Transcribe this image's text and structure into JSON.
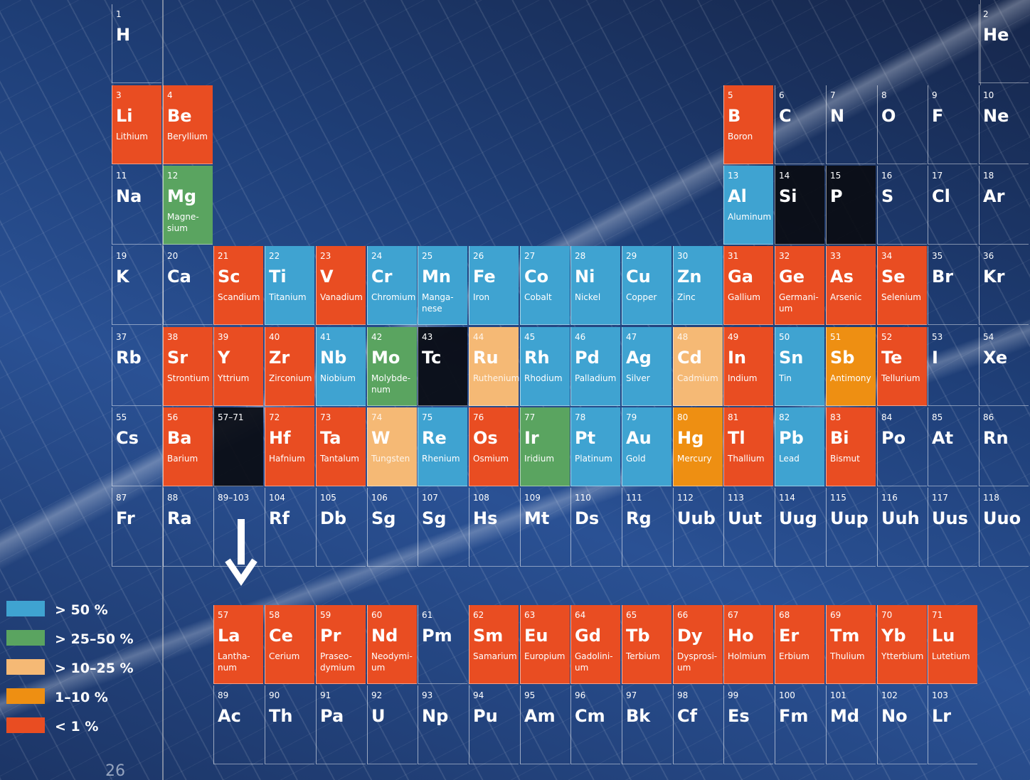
{
  "page_number": "26",
  "colors": {
    "blue": "#3fa3d1",
    "green": "#5aa460",
    "lightorange": "#f5b975",
    "orange": "#ee8f12",
    "red": "#e94d22"
  },
  "legend": [
    {
      "label": "> 50 %",
      "color": "blue"
    },
    {
      "label": "> 25–50 %",
      "color": "green"
    },
    {
      "label": "> 10–25 %",
      "color": "lightorange"
    },
    {
      "label": "1–10 %",
      "color": "orange"
    },
    {
      "label": "< 1 %",
      "color": "red"
    }
  ],
  "elements": [
    {
      "n": "1",
      "s": "H",
      "name": "",
      "c": "",
      "r": 1,
      "col": 1
    },
    {
      "n": "2",
      "s": "He",
      "name": "",
      "c": "",
      "r": 1,
      "col": 18
    },
    {
      "n": "3",
      "s": "Li",
      "name": "Lithium",
      "c": "red",
      "r": 2,
      "col": 1
    },
    {
      "n": "4",
      "s": "Be",
      "name": "Beryllium",
      "c": "red",
      "r": 2,
      "col": 2
    },
    {
      "n": "5",
      "s": "B",
      "name": "Boron",
      "c": "red",
      "r": 2,
      "col": 13
    },
    {
      "n": "6",
      "s": "C",
      "name": "",
      "c": "",
      "r": 2,
      "col": 14
    },
    {
      "n": "7",
      "s": "N",
      "name": "",
      "c": "",
      "r": 2,
      "col": 15
    },
    {
      "n": "8",
      "s": "O",
      "name": "",
      "c": "",
      "r": 2,
      "col": 16
    },
    {
      "n": "9",
      "s": "F",
      "name": "",
      "c": "",
      "r": 2,
      "col": 17
    },
    {
      "n": "10",
      "s": "Ne",
      "name": "",
      "c": "",
      "r": 2,
      "col": 18
    },
    {
      "n": "11",
      "s": "Na",
      "name": "",
      "c": "",
      "r": 3,
      "col": 1
    },
    {
      "n": "12",
      "s": "Mg",
      "name": "Magne-\nsium",
      "c": "green",
      "r": 3,
      "col": 2
    },
    {
      "n": "13",
      "s": "Al",
      "name": "Aluminum",
      "c": "blue",
      "r": 3,
      "col": 13
    },
    {
      "n": "14",
      "s": "Si",
      "name": "",
      "c": "dark",
      "r": 3,
      "col": 14
    },
    {
      "n": "15",
      "s": "P",
      "name": "",
      "c": "dark",
      "r": 3,
      "col": 15
    },
    {
      "n": "16",
      "s": "S",
      "name": "",
      "c": "",
      "r": 3,
      "col": 16
    },
    {
      "n": "17",
      "s": "Cl",
      "name": "",
      "c": "",
      "r": 3,
      "col": 17
    },
    {
      "n": "18",
      "s": "Ar",
      "name": "",
      "c": "",
      "r": 3,
      "col": 18
    },
    {
      "n": "19",
      "s": "K",
      "name": "",
      "c": "",
      "r": 4,
      "col": 1
    },
    {
      "n": "20",
      "s": "Ca",
      "name": "",
      "c": "",
      "r": 4,
      "col": 2
    },
    {
      "n": "21",
      "s": "Sc",
      "name": "Scandium",
      "c": "red",
      "r": 4,
      "col": 3
    },
    {
      "n": "22",
      "s": "Ti",
      "name": "Titanium",
      "c": "blue",
      "r": 4,
      "col": 4
    },
    {
      "n": "23",
      "s": "V",
      "name": "Vanadium",
      "c": "red",
      "r": 4,
      "col": 5
    },
    {
      "n": "24",
      "s": "Cr",
      "name": "Chromium",
      "c": "blue",
      "r": 4,
      "col": 6
    },
    {
      "n": "25",
      "s": "Mn",
      "name": "Manga-\nnese",
      "c": "blue",
      "r": 4,
      "col": 7
    },
    {
      "n": "26",
      "s": "Fe",
      "name": "Iron",
      "c": "blue",
      "r": 4,
      "col": 8
    },
    {
      "n": "27",
      "s": "Co",
      "name": "Cobalt",
      "c": "blue",
      "r": 4,
      "col": 9
    },
    {
      "n": "28",
      "s": "Ni",
      "name": "Nickel",
      "c": "blue",
      "r": 4,
      "col": 10
    },
    {
      "n": "29",
      "s": "Cu",
      "name": "Copper",
      "c": "blue",
      "r": 4,
      "col": 11
    },
    {
      "n": "30",
      "s": "Zn",
      "name": "Zinc",
      "c": "blue",
      "r": 4,
      "col": 12
    },
    {
      "n": "31",
      "s": "Ga",
      "name": "Gallium",
      "c": "red",
      "r": 4,
      "col": 13
    },
    {
      "n": "32",
      "s": "Ge",
      "name": "Germani-\num",
      "c": "red",
      "r": 4,
      "col": 14
    },
    {
      "n": "33",
      "s": "As",
      "name": "Arsenic",
      "c": "red",
      "r": 4,
      "col": 15
    },
    {
      "n": "34",
      "s": "Se",
      "name": "Selenium",
      "c": "red",
      "r": 4,
      "col": 16
    },
    {
      "n": "35",
      "s": "Br",
      "name": "",
      "c": "",
      "r": 4,
      "col": 17
    },
    {
      "n": "36",
      "s": "Kr",
      "name": "",
      "c": "",
      "r": 4,
      "col": 18
    },
    {
      "n": "37",
      "s": "Rb",
      "name": "",
      "c": "",
      "r": 5,
      "col": 1
    },
    {
      "n": "38",
      "s": "Sr",
      "name": "Strontium",
      "c": "red",
      "r": 5,
      "col": 2
    },
    {
      "n": "39",
      "s": "Y",
      "name": "Yttrium",
      "c": "red",
      "r": 5,
      "col": 3
    },
    {
      "n": "40",
      "s": "Zr",
      "name": "Zirconium",
      "c": "red",
      "r": 5,
      "col": 4
    },
    {
      "n": "41",
      "s": "Nb",
      "name": "Niobium",
      "c": "blue",
      "r": 5,
      "col": 5
    },
    {
      "n": "42",
      "s": "Mo",
      "name": "Molybde-\nnum",
      "c": "green",
      "r": 5,
      "col": 6
    },
    {
      "n": "43",
      "s": "Tc",
      "name": "",
      "c": "dark",
      "r": 5,
      "col": 7
    },
    {
      "n": "44",
      "s": "Ru",
      "name": "Ruthenium",
      "c": "lightorange",
      "r": 5,
      "col": 8
    },
    {
      "n": "45",
      "s": "Rh",
      "name": "Rhodium",
      "c": "blue",
      "r": 5,
      "col": 9
    },
    {
      "n": "46",
      "s": "Pd",
      "name": "Palladium",
      "c": "blue",
      "r": 5,
      "col": 10
    },
    {
      "n": "47",
      "s": "Ag",
      "name": "Silver",
      "c": "blue",
      "r": 5,
      "col": 11
    },
    {
      "n": "48",
      "s": "Cd",
      "name": "Cadmium",
      "c": "lightorange",
      "r": 5,
      "col": 12
    },
    {
      "n": "49",
      "s": "In",
      "name": "Indium",
      "c": "red",
      "r": 5,
      "col": 13
    },
    {
      "n": "50",
      "s": "Sn",
      "name": "Tin",
      "c": "blue",
      "r": 5,
      "col": 14
    },
    {
      "n": "51",
      "s": "Sb",
      "name": "Antimony",
      "c": "orange",
      "r": 5,
      "col": 15
    },
    {
      "n": "52",
      "s": "Te",
      "name": "Tellurium",
      "c": "red",
      "r": 5,
      "col": 16
    },
    {
      "n": "53",
      "s": "I",
      "name": "",
      "c": "",
      "r": 5,
      "col": 17
    },
    {
      "n": "54",
      "s": "Xe",
      "name": "",
      "c": "",
      "r": 5,
      "col": 18
    },
    {
      "n": "55",
      "s": "Cs",
      "name": "",
      "c": "",
      "r": 6,
      "col": 1
    },
    {
      "n": "56",
      "s": "Ba",
      "name": "Barium",
      "c": "red",
      "r": 6,
      "col": 2
    },
    {
      "n": "57–71",
      "s": "",
      "name": "",
      "c": "dark",
      "r": 6,
      "col": 3
    },
    {
      "n": "72",
      "s": "Hf",
      "name": "Hafnium",
      "c": "red",
      "r": 6,
      "col": 4
    },
    {
      "n": "73",
      "s": "Ta",
      "name": "Tantalum",
      "c": "red",
      "r": 6,
      "col": 5
    },
    {
      "n": "74",
      "s": "W",
      "name": "Tungsten",
      "c": "lightorange",
      "r": 6,
      "col": 6
    },
    {
      "n": "75",
      "s": "Re",
      "name": "Rhenium",
      "c": "blue",
      "r": 6,
      "col": 7
    },
    {
      "n": "76",
      "s": "Os",
      "name": "Osmium",
      "c": "red",
      "r": 6,
      "col": 8
    },
    {
      "n": "77",
      "s": "Ir",
      "name": "Iridium",
      "c": "green",
      "r": 6,
      "col": 9
    },
    {
      "n": "78",
      "s": "Pt",
      "name": "Platinum",
      "c": "blue",
      "r": 6,
      "col": 10
    },
    {
      "n": "79",
      "s": "Au",
      "name": "Gold",
      "c": "blue",
      "r": 6,
      "col": 11
    },
    {
      "n": "80",
      "s": "Hg",
      "name": "Mercury",
      "c": "orange",
      "r": 6,
      "col": 12
    },
    {
      "n": "81",
      "s": "Tl",
      "name": "Thallium",
      "c": "red",
      "r": 6,
      "col": 13
    },
    {
      "n": "82",
      "s": "Pb",
      "name": "Lead",
      "c": "blue",
      "r": 6,
      "col": 14
    },
    {
      "n": "83",
      "s": "Bi",
      "name": "Bismut",
      "c": "red",
      "r": 6,
      "col": 15
    },
    {
      "n": "84",
      "s": "Po",
      "name": "",
      "c": "",
      "r": 6,
      "col": 16
    },
    {
      "n": "85",
      "s": "At",
      "name": "",
      "c": "",
      "r": 6,
      "col": 17
    },
    {
      "n": "86",
      "s": "Rn",
      "name": "",
      "c": "",
      "r": 6,
      "col": 18
    },
    {
      "n": "87",
      "s": "Fr",
      "name": "",
      "c": "",
      "r": 7,
      "col": 1
    },
    {
      "n": "88",
      "s": "Ra",
      "name": "",
      "c": "",
      "r": 7,
      "col": 2
    },
    {
      "n": "89–103",
      "s": "",
      "name": "",
      "c": "",
      "r": 7,
      "col": 3
    },
    {
      "n": "104",
      "s": "Rf",
      "name": "",
      "c": "",
      "r": 7,
      "col": 4
    },
    {
      "n": "105",
      "s": "Db",
      "name": "",
      "c": "",
      "r": 7,
      "col": 5
    },
    {
      "n": "106",
      "s": "Sg",
      "name": "",
      "c": "",
      "r": 7,
      "col": 6
    },
    {
      "n": "107",
      "s": "Sg",
      "name": "",
      "c": "",
      "r": 7,
      "col": 7
    },
    {
      "n": "108",
      "s": "Hs",
      "name": "",
      "c": "",
      "r": 7,
      "col": 8
    },
    {
      "n": "109",
      "s": "Mt",
      "name": "",
      "c": "",
      "r": 7,
      "col": 9
    },
    {
      "n": "110",
      "s": "Ds",
      "name": "",
      "c": "",
      "r": 7,
      "col": 10
    },
    {
      "n": "111",
      "s": "Rg",
      "name": "",
      "c": "",
      "r": 7,
      "col": 11
    },
    {
      "n": "112",
      "s": "Uub",
      "name": "",
      "c": "",
      "r": 7,
      "col": 12
    },
    {
      "n": "113",
      "s": "Uut",
      "name": "",
      "c": "",
      "r": 7,
      "col": 13
    },
    {
      "n": "114",
      "s": "Uug",
      "name": "",
      "c": "",
      "r": 7,
      "col": 14
    },
    {
      "n": "115",
      "s": "Uup",
      "name": "",
      "c": "",
      "r": 7,
      "col": 15
    },
    {
      "n": "116",
      "s": "Uuh",
      "name": "",
      "c": "",
      "r": 7,
      "col": 16
    },
    {
      "n": "117",
      "s": "Uus",
      "name": "",
      "c": "",
      "r": 7,
      "col": 17
    },
    {
      "n": "118",
      "s": "Uuo",
      "name": "",
      "c": "",
      "r": 7,
      "col": 18
    },
    {
      "n": "57",
      "s": "La",
      "name": "Lantha-\nnum",
      "c": "red",
      "r": 8,
      "col": 3
    },
    {
      "n": "58",
      "s": "Ce",
      "name": "Cerium",
      "c": "red",
      "r": 8,
      "col": 4
    },
    {
      "n": "59",
      "s": "Pr",
      "name": "Praseo-\ndymium",
      "c": "red",
      "r": 8,
      "col": 5
    },
    {
      "n": "60",
      "s": "Nd",
      "name": "Neodymi-\num",
      "c": "red",
      "r": 8,
      "col": 6
    },
    {
      "n": "61",
      "s": "Pm",
      "name": "",
      "c": "",
      "r": 8,
      "col": 7
    },
    {
      "n": "62",
      "s": "Sm",
      "name": "Samarium",
      "c": "red",
      "r": 8,
      "col": 8
    },
    {
      "n": "63",
      "s": "Eu",
      "name": "Europium",
      "c": "red",
      "r": 8,
      "col": 9
    },
    {
      "n": "64",
      "s": "Gd",
      "name": "Gadolini-\num",
      "c": "red",
      "r": 8,
      "col": 10
    },
    {
      "n": "65",
      "s": "Tb",
      "name": "Terbium",
      "c": "red",
      "r": 8,
      "col": 11
    },
    {
      "n": "66",
      "s": "Dy",
      "name": "Dysprosi-\num",
      "c": "red",
      "r": 8,
      "col": 12
    },
    {
      "n": "67",
      "s": "Ho",
      "name": "Holmium",
      "c": "red",
      "r": 8,
      "col": 13
    },
    {
      "n": "68",
      "s": "Er",
      "name": "Erbium",
      "c": "red",
      "r": 8,
      "col": 14
    },
    {
      "n": "69",
      "s": "Tm",
      "name": "Thulium",
      "c": "red",
      "r": 8,
      "col": 15
    },
    {
      "n": "70",
      "s": "Yb",
      "name": "Ytterbium",
      "c": "red",
      "r": 8,
      "col": 16
    },
    {
      "n": "71",
      "s": "Lu",
      "name": "Lutetium",
      "c": "red",
      "r": 8,
      "col": 17
    },
    {
      "n": "89",
      "s": "Ac",
      "name": "",
      "c": "",
      "r": 9,
      "col": 3
    },
    {
      "n": "90",
      "s": "Th",
      "name": "",
      "c": "",
      "r": 9,
      "col": 4
    },
    {
      "n": "91",
      "s": "Pa",
      "name": "",
      "c": "",
      "r": 9,
      "col": 5
    },
    {
      "n": "92",
      "s": "U",
      "name": "",
      "c": "",
      "r": 9,
      "col": 6
    },
    {
      "n": "93",
      "s": "Np",
      "name": "",
      "c": "",
      "r": 9,
      "col": 7
    },
    {
      "n": "94",
      "s": "Pu",
      "name": "",
      "c": "",
      "r": 9,
      "col": 8
    },
    {
      "n": "95",
      "s": "Am",
      "name": "",
      "c": "",
      "r": 9,
      "col": 9
    },
    {
      "n": "96",
      "s": "Cm",
      "name": "",
      "c": "",
      "r": 9,
      "col": 10
    },
    {
      "n": "97",
      "s": "Bk",
      "name": "",
      "c": "",
      "r": 9,
      "col": 11
    },
    {
      "n": "98",
      "s": "Cf",
      "name": "",
      "c": "",
      "r": 9,
      "col": 12
    },
    {
      "n": "99",
      "s": "Es",
      "name": "",
      "c": "",
      "r": 9,
      "col": 13
    },
    {
      "n": "100",
      "s": "Fm",
      "name": "",
      "c": "",
      "r": 9,
      "col": 14
    },
    {
      "n": "101",
      "s": "Md",
      "name": "",
      "c": "",
      "r": 9,
      "col": 15
    },
    {
      "n": "102",
      "s": "No",
      "name": "",
      "c": "",
      "r": 9,
      "col": 16
    },
    {
      "n": "103",
      "s": "Lr",
      "name": "",
      "c": "",
      "r": 9,
      "col": 17
    }
  ]
}
